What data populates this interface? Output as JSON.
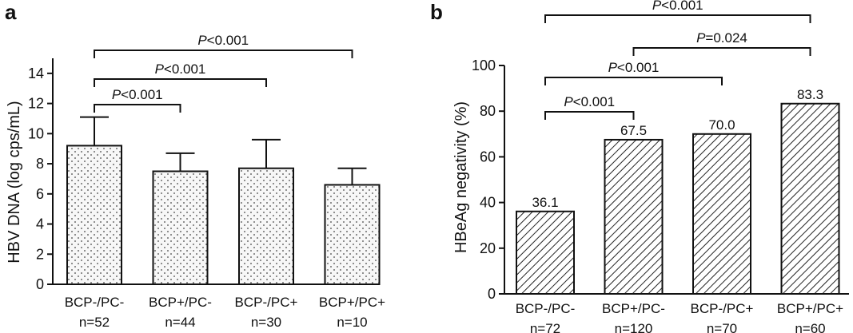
{
  "chart_data": [
    {
      "panel": "a",
      "type": "bar",
      "ylabel": "HBV DNA (log cps/mL)",
      "ylim": [
        0,
        15
      ],
      "yticks": [
        0,
        2,
        4,
        6,
        8,
        10,
        12,
        14
      ],
      "categories": [
        "BCP-/PC-",
        "BCP+/PC-",
        "BCP-/PC+",
        "BCP+/PC+"
      ],
      "n_labels": [
        "n=52",
        "n=44",
        "n=30",
        "n=10"
      ],
      "values": [
        9.2,
        7.5,
        7.7,
        6.6
      ],
      "error_upper": [
        11.1,
        8.7,
        9.6,
        7.7
      ],
      "fill_pattern": "dots",
      "comparisons": [
        {
          "from": 0,
          "to": 1,
          "italic": "P",
          "rest": "<0.001"
        },
        {
          "from": 0,
          "to": 2,
          "italic": "P",
          "rest": "<0.001"
        },
        {
          "from": 0,
          "to": 3,
          "italic": "P",
          "rest": "<0.001"
        }
      ]
    },
    {
      "panel": "b",
      "type": "bar",
      "ylabel": "HBeAg negativity (%)",
      "ylim": [
        0,
        100
      ],
      "yticks": [
        0,
        20,
        40,
        60,
        80,
        100
      ],
      "categories": [
        "BCP-/PC-",
        "BCP+/PC-",
        "BCP-/PC+",
        "BCP+/PC+"
      ],
      "n_labels": [
        "n=72",
        "n=120",
        "n=70",
        "n=60"
      ],
      "values": [
        36.1,
        67.5,
        70.0,
        83.3
      ],
      "value_labels": [
        "36.1",
        "67.5",
        "70.0",
        "83.3"
      ],
      "fill_pattern": "hatch",
      "comparisons": [
        {
          "from": 0,
          "to": 1,
          "italic": "P",
          "rest": "<0.001"
        },
        {
          "from": 0,
          "to": 2,
          "italic": "P",
          "rest": "<0.001"
        },
        {
          "from": 1,
          "to": 3,
          "italic": "P",
          "rest": "=0.024"
        },
        {
          "from": 0,
          "to": 3,
          "italic": "P",
          "rest": "<0.001"
        }
      ]
    }
  ]
}
